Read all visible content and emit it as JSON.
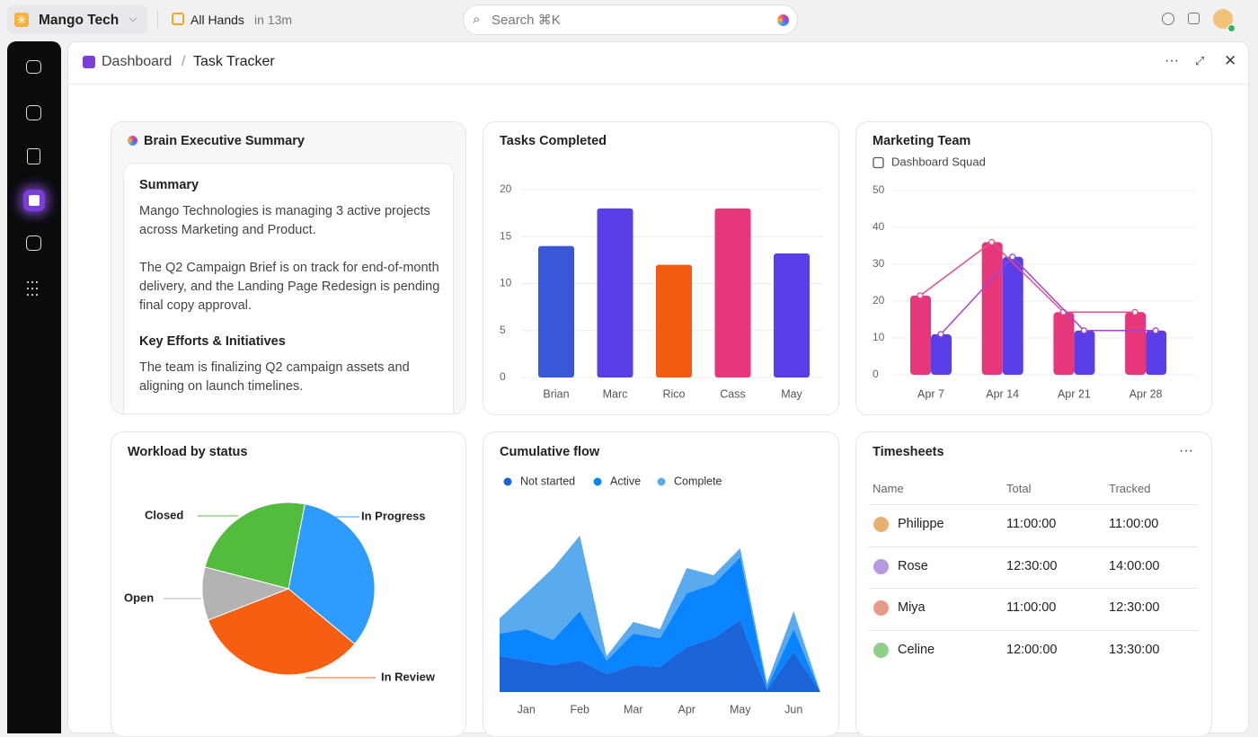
{
  "topbar": {
    "workspace": "Mango Tech",
    "event": "All Hands",
    "event_time": "in 13m",
    "search": "Search ⌘K"
  },
  "breadcrumb": {
    "parent": "Dashboard",
    "separator": "/",
    "current": "Task Tracker"
  },
  "summary_card": {
    "title": "Brain Executive Summary",
    "sections": [
      {
        "heading": "Summary",
        "paragraphs": [
          "Mango Technologies is managing 3 active projects across Marketing and Product.",
          "The Q2 Campaign Brief is on track for end-of-month delivery, and the Landing Page Redesign is pending final copy approval."
        ]
      },
      {
        "heading": "Key Efforts & Initiatives",
        "paragraphs": [
          "The team is finalizing Q2 campaign assets and aligning on launch timelines."
        ]
      }
    ]
  },
  "chart_data": [
    {
      "type": "bar",
      "title": "Tasks Completed",
      "categories": [
        "Brian",
        "Marc",
        "Rico",
        "Cass",
        "May"
      ],
      "values": [
        14,
        18,
        12,
        18,
        13.2
      ],
      "colors": [
        "#3a57d8",
        "#5b3ee8",
        "#f35b12",
        "#e6377a",
        "#5b3ee8"
      ],
      "ylim": [
        0,
        20
      ],
      "yticks": [
        0,
        5,
        10,
        15,
        20
      ],
      "grid": true
    },
    {
      "type": "grouped_bar",
      "title": "Marketing Team",
      "subtitle": "Dashboard Squad",
      "categories": [
        "Apr 7",
        "Apr 14",
        "Apr 21",
        "Apr 28"
      ],
      "series": [
        {
          "color": "#e6377a",
          "line_color": "#e4508a",
          "values": [
            21.5,
            36,
            17,
            17
          ]
        },
        {
          "color": "#5b3ee8",
          "line_color": "#a243d6",
          "values": [
            11,
            32,
            12,
            12
          ]
        }
      ],
      "line_overlay": true,
      "ylim": [
        0,
        50
      ],
      "yticks": [
        0,
        10,
        20,
        30,
        40,
        50
      ],
      "grid": true
    },
    {
      "type": "pie",
      "title": "Workload by status",
      "categories": [
        "In Progress",
        "In Review",
        "Open",
        "Closed"
      ],
      "values": [
        33,
        33,
        10,
        24
      ],
      "colors": [
        "#2e9bff",
        "#f65f12",
        "#b3b3b3",
        "#53bc3c"
      ]
    },
    {
      "type": "area",
      "title": "Cumulative flow",
      "stacked": true,
      "categories": [
        null,
        "Jan",
        null,
        "Feb",
        null,
        "Mar",
        null,
        "Apr",
        null,
        "May",
        null,
        "Jun",
        null
      ],
      "series": [
        {
          "name": "Not started",
          "color": "#1b63d6",
          "values": [
            40,
            35,
            30,
            35,
            20,
            30,
            28,
            50,
            60,
            80,
            2,
            45,
            0
          ]
        },
        {
          "name": "Active",
          "color": "#0a84ff",
          "values": [
            25,
            35,
            28,
            55,
            15,
            35,
            32,
            60,
            60,
            70,
            3,
            25,
            0
          ]
        },
        {
          "name": "Complete",
          "color": "#5aaaf0",
          "values": [
            17,
            40,
            80,
            84,
            5,
            13,
            10,
            28,
            10,
            10,
            5,
            20,
            0
          ]
        }
      ]
    }
  ],
  "timesheets": {
    "title": "Timesheets",
    "columns": [
      "Name",
      "Total",
      "Tracked"
    ],
    "rows": [
      [
        "Philippe",
        "11:00:00",
        "11:00:00"
      ],
      [
        "Rose",
        "12:30:00",
        "14:00:00"
      ],
      [
        "Miya",
        "11:00:00",
        "12:30:00"
      ],
      [
        "Celine",
        "12:00:00",
        "13:30:00"
      ]
    ]
  }
}
